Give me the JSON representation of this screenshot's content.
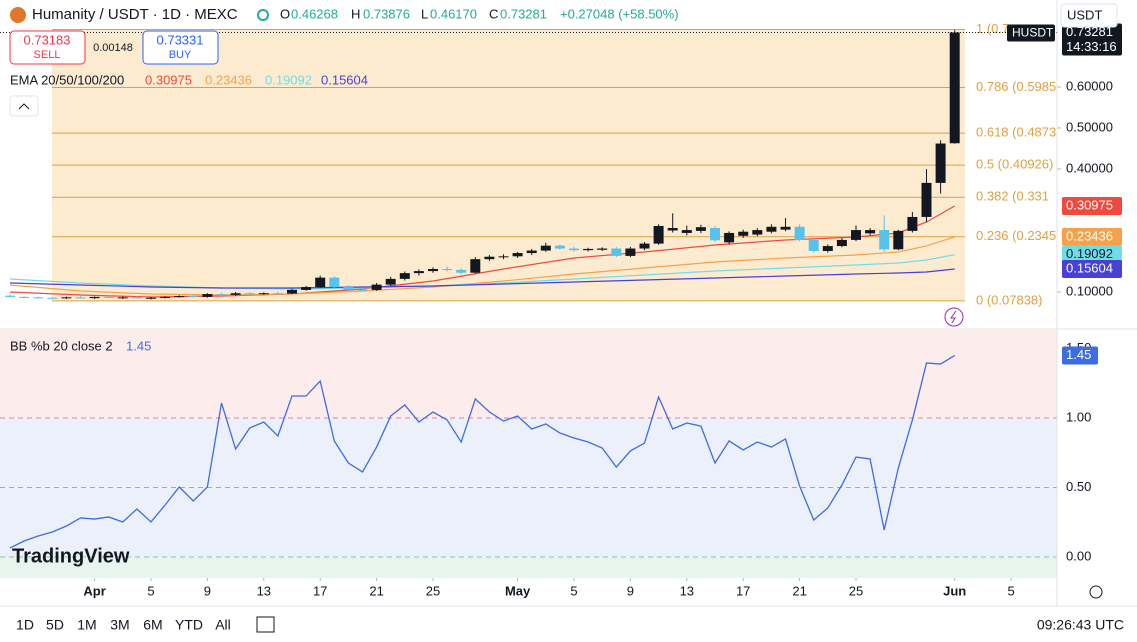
{
  "header": {
    "symbol": "Humanity / USDT · 1D · MEXC",
    "o_label": "O",
    "o": "0.46268",
    "h_label": "H",
    "h": "0.73876",
    "l_label": "L",
    "l": "0.46170",
    "c_label": "C",
    "c": "0.73281",
    "change": "+0.27048 (+58.50%)"
  },
  "trade": {
    "sell_price": "0.73183",
    "sell": "SELL",
    "spread": "0.00148",
    "buy_price": "0.73331",
    "buy": "BUY"
  },
  "currency": "USDT",
  "symbol_tag": "HUSDT",
  "countdown": "14:33:16",
  "logo": "TradingView",
  "toolbar": {
    "ranges": [
      "1D",
      "5D",
      "1M",
      "3M",
      "6M",
      "YTD",
      "All"
    ],
    "clock": "09:26:43 UTC"
  },
  "chart_data": [
    {
      "type": "candlestick",
      "indicator_label": "EMA 20/50/100/200",
      "x": [
        "03-26",
        "03-27",
        "03-28",
        "03-29",
        "03-30",
        "03-31",
        "04-01",
        "04-02",
        "04-03",
        "04-04",
        "04-05",
        "04-06",
        "04-07",
        "04-08",
        "04-09",
        "04-10",
        "04-11",
        "04-12",
        "04-13",
        "04-14",
        "04-15",
        "04-16",
        "04-17",
        "04-18",
        "04-19",
        "04-20",
        "04-21",
        "04-22",
        "04-23",
        "04-24",
        "04-25",
        "04-26",
        "04-27",
        "04-28",
        "04-29",
        "04-30",
        "05-01",
        "05-02",
        "05-03",
        "05-04",
        "05-05",
        "05-06",
        "05-07",
        "05-08",
        "05-09",
        "05-10",
        "05-11",
        "05-12",
        "05-13",
        "05-14",
        "05-15",
        "05-16",
        "05-17",
        "05-18",
        "05-19",
        "05-20",
        "05-21",
        "05-22",
        "05-23",
        "05-24",
        "05-25",
        "05-26",
        "05-27",
        "05-28",
        "05-29",
        "05-30",
        "05-31",
        "06-01"
      ],
      "open": [
        0.091,
        0.088,
        0.087,
        0.086,
        0.085,
        0.087,
        0.085,
        0.088,
        0.086,
        0.087,
        0.085,
        0.086,
        0.088,
        0.09,
        0.088,
        0.095,
        0.093,
        0.097,
        0.095,
        0.097,
        0.096,
        0.105,
        0.112,
        0.135,
        0.112,
        0.106,
        0.105,
        0.118,
        0.132,
        0.146,
        0.151,
        0.156,
        0.154,
        0.147,
        0.18,
        0.186,
        0.187,
        0.195,
        0.201,
        0.213,
        0.206,
        0.202,
        0.203,
        0.206,
        0.188,
        0.206,
        0.218,
        0.25,
        0.244,
        0.249,
        0.256,
        0.221,
        0.237,
        0.24,
        0.247,
        0.252,
        0.259,
        0.227,
        0.2,
        0.212,
        0.227,
        0.243,
        0.251,
        0.204,
        0.249,
        0.283,
        0.366,
        0.46268
      ],
      "high": [
        0.094,
        0.09,
        0.089,
        0.088,
        0.089,
        0.09,
        0.089,
        0.091,
        0.089,
        0.09,
        0.088,
        0.09,
        0.092,
        0.093,
        0.097,
        0.098,
        0.1,
        0.099,
        0.099,
        0.101,
        0.108,
        0.115,
        0.14,
        0.138,
        0.116,
        0.11,
        0.122,
        0.137,
        0.15,
        0.155,
        0.16,
        0.162,
        0.158,
        0.185,
        0.19,
        0.192,
        0.198,
        0.205,
        0.22,
        0.216,
        0.21,
        0.208,
        0.209,
        0.21,
        0.21,
        0.222,
        0.265,
        0.292,
        0.262,
        0.264,
        0.26,
        0.248,
        0.252,
        0.256,
        0.265,
        0.28,
        0.265,
        0.232,
        0.216,
        0.232,
        0.262,
        0.256,
        0.287,
        0.252,
        0.295,
        0.4,
        0.47,
        0.73876
      ],
      "low": [
        0.086,
        0.085,
        0.084,
        0.083,
        0.083,
        0.084,
        0.083,
        0.085,
        0.083,
        0.084,
        0.082,
        0.084,
        0.086,
        0.087,
        0.086,
        0.09,
        0.091,
        0.093,
        0.093,
        0.094,
        0.095,
        0.103,
        0.11,
        0.108,
        0.103,
        0.102,
        0.103,
        0.115,
        0.128,
        0.14,
        0.147,
        0.15,
        0.143,
        0.145,
        0.176,
        0.18,
        0.183,
        0.19,
        0.198,
        0.203,
        0.198,
        0.199,
        0.2,
        0.185,
        0.185,
        0.202,
        0.215,
        0.245,
        0.238,
        0.244,
        0.222,
        0.216,
        0.232,
        0.236,
        0.243,
        0.248,
        0.224,
        0.196,
        0.196,
        0.209,
        0.224,
        0.238,
        0.198,
        0.202,
        0.245,
        0.27,
        0.34,
        0.4617
      ],
      "close": [
        0.088,
        0.087,
        0.086,
        0.085,
        0.087,
        0.085,
        0.088,
        0.086,
        0.087,
        0.085,
        0.086,
        0.088,
        0.09,
        0.088,
        0.095,
        0.093,
        0.097,
        0.095,
        0.097,
        0.096,
        0.105,
        0.112,
        0.135,
        0.112,
        0.106,
        0.105,
        0.118,
        0.132,
        0.146,
        0.151,
        0.156,
        0.154,
        0.147,
        0.18,
        0.186,
        0.187,
        0.195,
        0.201,
        0.213,
        0.206,
        0.202,
        0.205,
        0.206,
        0.188,
        0.206,
        0.218,
        0.261,
        0.256,
        0.251,
        0.258,
        0.226,
        0.244,
        0.247,
        0.251,
        0.259,
        0.259,
        0.227,
        0.2,
        0.212,
        0.227,
        0.251,
        0.251,
        0.204,
        0.249,
        0.283,
        0.366,
        0.462,
        0.73281
      ],
      "up_color": "#131722",
      "down_color": "#54c3ee",
      "series": [
        {
          "color": "#f04a3e",
          "x": [
            "03-26",
            "03-31",
            "04-05",
            "04-10",
            "04-15",
            "04-20",
            "04-25",
            "04-30",
            "05-05",
            "05-10",
            "05-15",
            "05-20",
            "05-25",
            "05-28",
            "05-30",
            "06-01"
          ],
          "values": [
            0.1,
            0.0927,
            0.0878,
            0.0902,
            0.0951,
            0.1073,
            0.1268,
            0.1561,
            0.1829,
            0.1976,
            0.2146,
            0.2268,
            0.2341,
            0.2439,
            0.2707,
            0.30975
          ]
        },
        {
          "color": "#f7a24a",
          "x": [
            "03-26",
            "03-31",
            "04-05",
            "04-10",
            "04-15",
            "04-20",
            "04-25",
            "04-30",
            "05-05",
            "05-10",
            "05-15",
            "05-20",
            "05-25",
            "05-28",
            "05-30",
            "06-01"
          ],
          "values": [
            0.1171,
            0.1024,
            0.0951,
            0.0927,
            0.0951,
            0.1024,
            0.1122,
            0.1268,
            0.1439,
            0.1585,
            0.1732,
            0.1829,
            0.1902,
            0.1976,
            0.2122,
            0.23436
          ]
        },
        {
          "color": "#6fdde6",
          "x": [
            "03-26",
            "03-31",
            "04-05",
            "04-10",
            "04-15",
            "04-20",
            "04-25",
            "04-30",
            "05-05",
            "05-10",
            "05-15",
            "05-20",
            "05-25",
            "05-28",
            "05-30",
            "06-01"
          ],
          "values": [
            0.1317,
            0.122,
            0.1146,
            0.1098,
            0.1073,
            0.1098,
            0.1146,
            0.122,
            0.1317,
            0.1415,
            0.1512,
            0.1585,
            0.1659,
            0.1707,
            0.178,
            0.19092
          ]
        },
        {
          "color": "#4a3fd6",
          "x": [
            "03-26",
            "03-31",
            "04-05",
            "04-10",
            "04-15",
            "04-20",
            "04-25",
            "04-30",
            "05-05",
            "05-10",
            "05-15",
            "05-20",
            "05-25",
            "05-28",
            "05-30",
            "06-01"
          ],
          "values": [
            0.122,
            0.1171,
            0.1122,
            0.1098,
            0.1098,
            0.1122,
            0.1146,
            0.1195,
            0.1244,
            0.1293,
            0.1341,
            0.139,
            0.1439,
            0.1463,
            0.1488,
            0.15604
          ]
        }
      ],
      "fib_levels": [
        {
          "price": 0.74014,
          "label": "1 (0.7"
        },
        {
          "price": 0.59852,
          "label": "0.786 (0.5985"
        },
        {
          "price": 0.48735,
          "label": "0.618 (0.4873"
        },
        {
          "price": 0.40926,
          "label": "0.5 (0.40926)"
        },
        {
          "price": 0.33117,
          "label": "0.382 (0.331"
        },
        {
          "price": 0.23456,
          "label": "0.236 (0.2345"
        },
        {
          "price": 0.07838,
          "label": "0 (0.07838)"
        }
      ],
      "fib_color": "#e0a040",
      "ylim": [
        0.0122,
        0.812
      ],
      "yticks": [
        {
          "value": 0.1,
          "label": "0.10000"
        },
        {
          "value": 0.4,
          "label": "0.40000"
        },
        {
          "value": 0.5,
          "label": "0.50000"
        },
        {
          "value": 0.6,
          "label": "0.60000"
        }
      ],
      "xticks": [
        {
          "value": "04-01",
          "label": "Apr"
        },
        {
          "value": "04-05",
          "label": "5"
        },
        {
          "value": "04-09",
          "label": "9"
        },
        {
          "value": "04-13",
          "label": "13"
        },
        {
          "value": "04-17",
          "label": "17"
        },
        {
          "value": "04-21",
          "label": "21"
        },
        {
          "value": "04-25",
          "label": "25"
        },
        {
          "value": "05-01",
          "label": "May"
        },
        {
          "value": "05-05",
          "label": "5"
        },
        {
          "value": "05-09",
          "label": "9"
        },
        {
          "value": "05-13",
          "label": "13"
        },
        {
          "value": "05-17",
          "label": "17"
        },
        {
          "value": "05-21",
          "label": "21"
        },
        {
          "value": "05-25",
          "label": "25"
        },
        {
          "value": "06-01",
          "label": "Jun"
        },
        {
          "value": "06-05",
          "label": "5"
        }
      ]
    },
    {
      "type": "line",
      "title": "BB %b 20 close 2",
      "color": "#3d6de0",
      "x": [
        "03-26",
        "03-27",
        "03-28",
        "03-29",
        "03-30",
        "03-31",
        "04-01",
        "04-02",
        "04-03",
        "04-04",
        "04-05",
        "04-06",
        "04-07",
        "04-08",
        "04-09",
        "04-10",
        "04-11",
        "04-12",
        "04-13",
        "04-14",
        "04-15",
        "04-16",
        "04-17",
        "04-18",
        "04-19",
        "04-20",
        "04-21",
        "04-22",
        "04-23",
        "04-24",
        "04-25",
        "04-26",
        "04-27",
        "04-28",
        "04-29",
        "04-30",
        "05-01",
        "05-02",
        "05-03",
        "05-04",
        "05-05",
        "05-06",
        "05-07",
        "05-08",
        "05-09",
        "05-10",
        "05-11",
        "05-12",
        "05-13",
        "05-14",
        "05-15",
        "05-16",
        "05-17",
        "05-18",
        "05-19",
        "05-20",
        "05-21",
        "05-22",
        "05-23",
        "05-24",
        "05-25",
        "05-26",
        "05-27",
        "05-28",
        "05-29",
        "05-30",
        "05-31",
        "06-01"
      ],
      "values": [
        0.065,
        0.115,
        0.151,
        0.18,
        0.223,
        0.281,
        0.273,
        0.288,
        0.252,
        0.345,
        0.252,
        0.374,
        0.504,
        0.403,
        0.504,
        1.108,
        0.777,
        0.928,
        0.971,
        0.871,
        1.158,
        1.158,
        1.266,
        0.835,
        0.676,
        0.612,
        0.791,
        1.014,
        1.094,
        0.971,
        1.043,
        0.986,
        0.827,
        1.137,
        1.043,
        0.978,
        1.014,
        0.921,
        0.957,
        0.892,
        0.856,
        0.827,
        0.784,
        0.647,
        0.763,
        0.82,
        1.151,
        0.921,
        0.964,
        0.942,
        0.676,
        0.835,
        0.77,
        0.827,
        0.791,
        0.849,
        0.511,
        0.266,
        0.353,
        0.518,
        0.719,
        0.705,
        0.194,
        0.64,
        0.986,
        1.396,
        1.388,
        1.45
      ],
      "ylim": [
        -0.151,
        1.633
      ],
      "yticks": [
        {
          "value": 0,
          "label": "0.00"
        },
        {
          "value": 0.5,
          "label": "0.50"
        },
        {
          "value": 1,
          "label": "1.00"
        },
        {
          "value": 1.5,
          "label": "1.50"
        }
      ],
      "grid": true
    }
  ]
}
